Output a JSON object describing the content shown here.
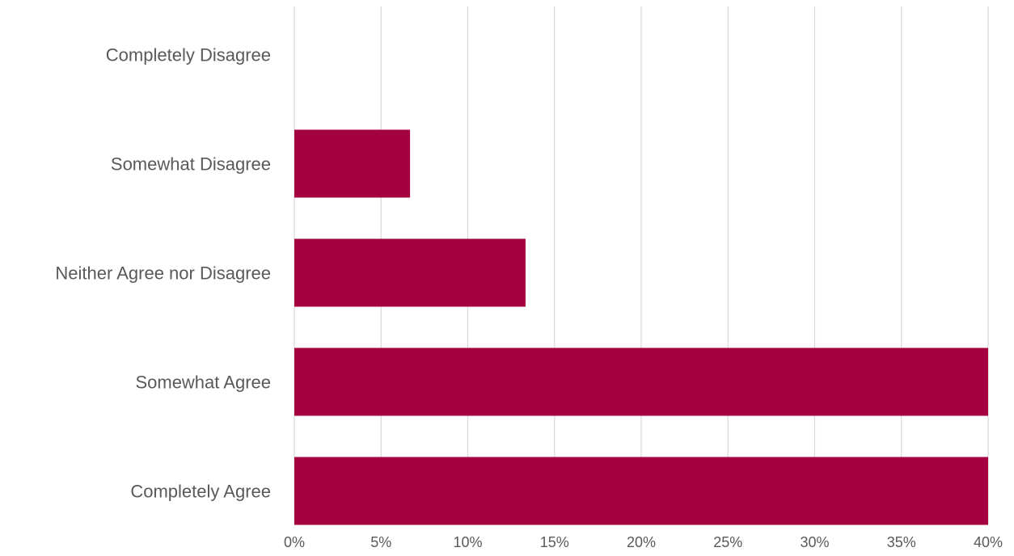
{
  "chart_data": {
    "type": "bar",
    "orientation": "horizontal",
    "categories": [
      "Completely Disagree",
      "Somewhat Disagree",
      "Neither Agree nor Disagree",
      "Somewhat Agree",
      "Completely Agree"
    ],
    "values": [
      0,
      6.67,
      13.33,
      40,
      40
    ],
    "x_ticks": [
      "0%",
      "5%",
      "10%",
      "15%",
      "20%",
      "25%",
      "30%",
      "35%",
      "40%"
    ],
    "xlim": [
      0,
      40
    ],
    "unit": "%",
    "grid": "vertical",
    "legend": "none",
    "colors": {
      "bar": "#A50040",
      "grid": "#D9D9D9",
      "text": "#595959",
      "background": "#FFFFFF"
    }
  }
}
